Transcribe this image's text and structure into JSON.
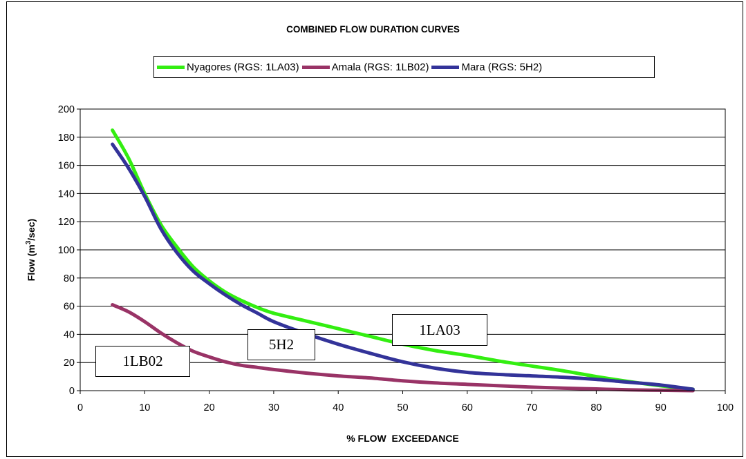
{
  "chart_data": {
    "type": "line",
    "title": "COMBINED FLOW DURATION CURVES",
    "xlabel": "% FLOW  EXCEEDANCE",
    "ylabel": "Flow (m³/sec)",
    "ylabel_parts": {
      "pre": "Flow (m",
      "sup": "3",
      "post": "/sec)"
    },
    "xlim": [
      0,
      100
    ],
    "ylim": [
      0,
      200
    ],
    "xticks": [
      0,
      10,
      20,
      30,
      40,
      50,
      60,
      70,
      80,
      90,
      100
    ],
    "yticks": [
      0,
      20,
      40,
      60,
      80,
      100,
      120,
      140,
      160,
      180,
      200
    ],
    "grid": "horizontal",
    "legend_position": "top",
    "series": [
      {
        "name": "Nyagores (RGS: 1LA03)",
        "color": "#33ee11",
        "x": [
          5,
          7.5,
          10,
          12.5,
          15,
          17.5,
          20,
          22.5,
          25,
          27.5,
          30,
          35,
          40,
          45,
          50,
          55,
          60,
          65,
          70,
          75,
          80,
          85,
          90,
          95
        ],
        "y": [
          185,
          165,
          140,
          118,
          102,
          88,
          78,
          70,
          64,
          59,
          55,
          49.5,
          44,
          38.5,
          33,
          28.5,
          25,
          21,
          17.5,
          14,
          10,
          6.5,
          3.5,
          1
        ]
      },
      {
        "name": "Amala (RGS: 1LB02)",
        "color": "#993366",
        "x": [
          5,
          7.5,
          10,
          12.5,
          15,
          17.5,
          20,
          22.5,
          25,
          27.5,
          30,
          35,
          40,
          45,
          50,
          55,
          60,
          65,
          70,
          75,
          80,
          85,
          90,
          95
        ],
        "y": [
          61,
          56,
          49,
          41,
          34,
          28,
          24,
          20.5,
          18,
          16.5,
          15,
          12.5,
          10.5,
          9,
          7,
          5.5,
          4.5,
          3.5,
          2.5,
          1.8,
          1.2,
          0.6,
          0.3,
          0
        ]
      },
      {
        "name": "Mara (RGS: 5H2)",
        "color": "#333399",
        "x": [
          5,
          7.5,
          10,
          12.5,
          15,
          17.5,
          20,
          22.5,
          25,
          27.5,
          30,
          35,
          40,
          45,
          50,
          55,
          60,
          65,
          70,
          75,
          80,
          85,
          90,
          95
        ],
        "y": [
          175,
          158,
          138,
          115,
          98,
          85,
          76,
          68,
          61,
          55,
          49,
          40.5,
          33,
          26.5,
          20.5,
          16,
          13,
          11.5,
          10.5,
          9.5,
          8,
          6,
          4,
          1
        ]
      }
    ],
    "annotations": [
      "1LA03",
      "5H2",
      "1LB02"
    ]
  }
}
